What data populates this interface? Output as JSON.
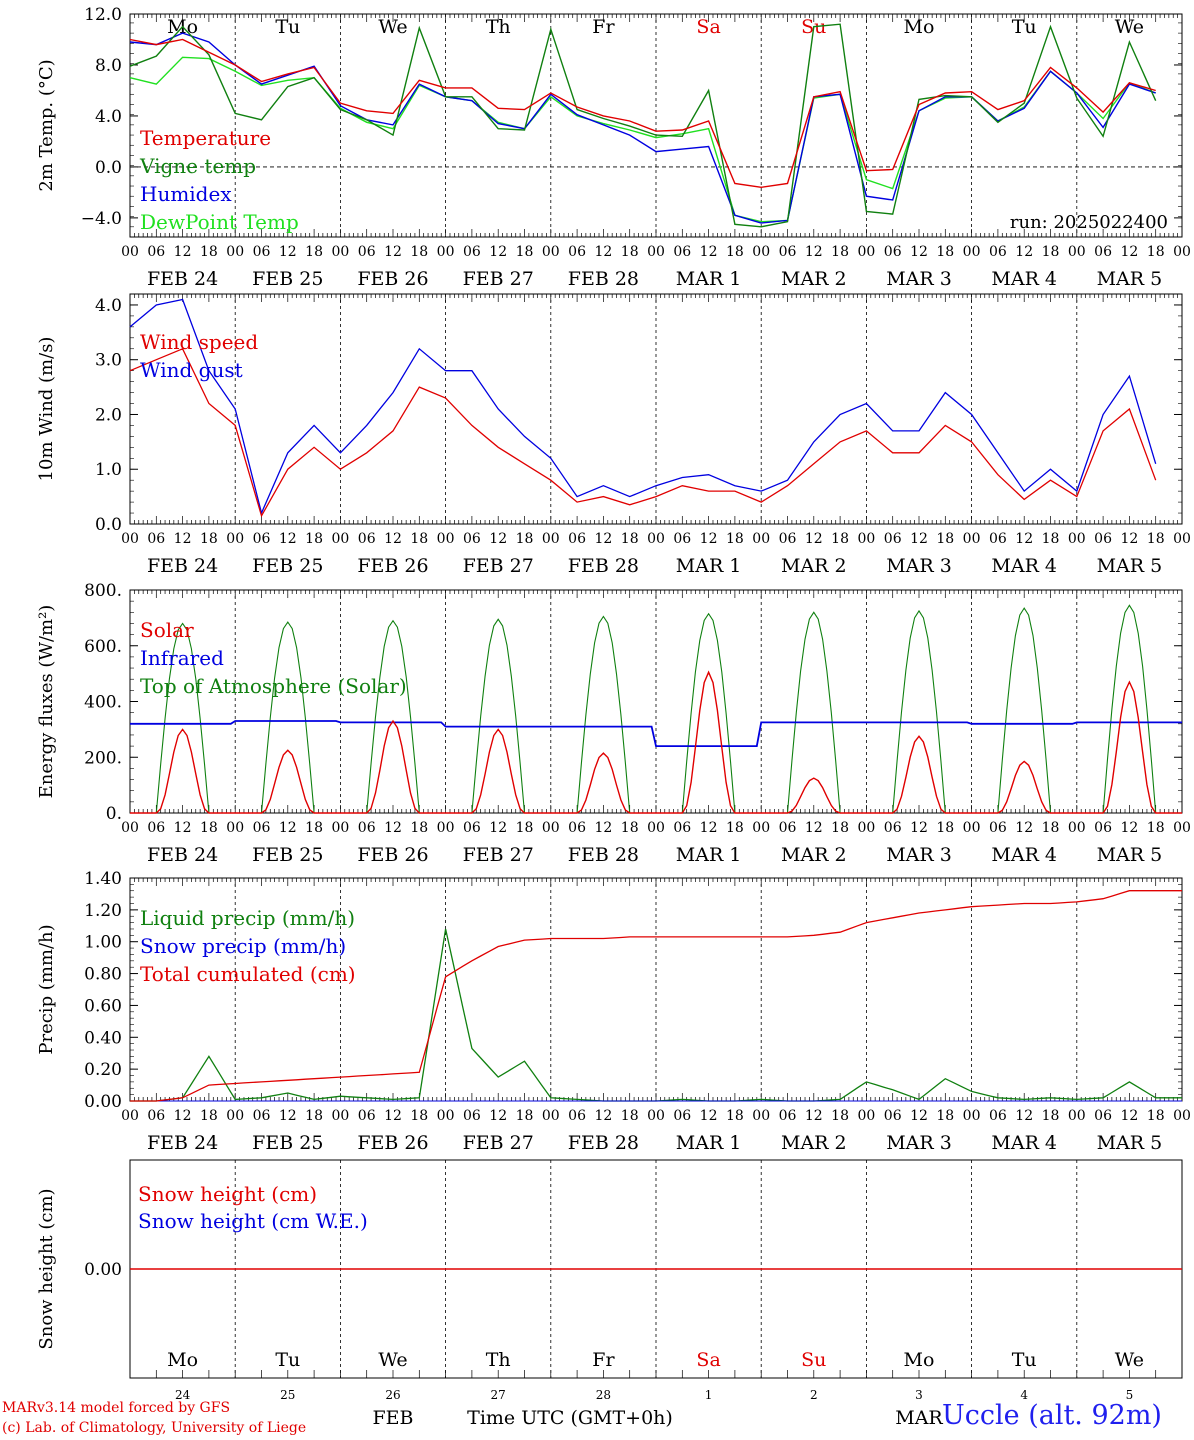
{
  "colors": {
    "red": "#e00000",
    "green": "#108010",
    "blue": "#0000e0",
    "lime": "#20e020",
    "black": "#000000"
  },
  "x_axis": {
    "hour_labels": [
      "00",
      "06",
      "12",
      "18"
    ],
    "date_labels": [
      "FEB 24",
      "FEB 25",
      "FEB 26",
      "FEB 27",
      "FEB 28",
      "MAR  1",
      "MAR  2",
      "MAR  3",
      "MAR  4",
      "MAR  5"
    ],
    "weekday_labels": [
      "Mo",
      "Tu",
      "We",
      "Th",
      "Fr",
      "Sa",
      "Su",
      "Mo",
      "Tu",
      "We"
    ],
    "weekend_days": [
      "Sa",
      "Su"
    ],
    "day_numbers": [
      "24",
      "25",
      "26",
      "27",
      "28",
      "1",
      "2",
      "3",
      "4",
      "5"
    ],
    "month_labels": [
      "FEB",
      "MAR"
    ]
  },
  "footer": {
    "credit_line1": "MARv3.14 model forced by GFS",
    "credit_line2": "(c) Lab. of Climatology, University of Liege",
    "time_label": "Time UTC (GMT+0h)",
    "station": "Uccle (alt. 92m)"
  },
  "chart_data": [
    {
      "type": "line",
      "ylabel": "2m Temp. (°C)",
      "ylim": [
        -5.5,
        12.0
      ],
      "yticks": [
        "12.0",
        "8.0",
        "4.0",
        "0.0",
        "−4.0"
      ],
      "ytick_values": [
        12,
        8,
        4,
        0,
        -4
      ],
      "zero_line": true,
      "run_label": "run: 2025022400",
      "x_hours": [
        0,
        6,
        12,
        18,
        24,
        30,
        36,
        42,
        48,
        54,
        60,
        66,
        72,
        78,
        84,
        90,
        96,
        102,
        108,
        114,
        120,
        126,
        132,
        138,
        144,
        150,
        156,
        162,
        168,
        174,
        180,
        186,
        192,
        198,
        204,
        210,
        216,
        222,
        228,
        234
      ],
      "series": [
        {
          "name": "Temperature",
          "color": "red",
          "values": [
            10.0,
            9.6,
            10.0,
            9.0,
            8.0,
            6.7,
            7.3,
            7.8,
            5.0,
            4.4,
            4.2,
            6.8,
            6.2,
            6.2,
            4.6,
            4.5,
            5.8,
            4.7,
            4.0,
            3.6,
            2.8,
            2.9,
            3.6,
            -1.3,
            -1.6,
            -1.3,
            5.5,
            5.9,
            -0.3,
            -0.2,
            4.9,
            5.8,
            5.9,
            4.5,
            5.2,
            7.8,
            6.2,
            4.3,
            6.6,
            6.0
          ]
        },
        {
          "name": "Vigne temp",
          "color": "green",
          "values": [
            7.9,
            8.7,
            11.0,
            8.8,
            4.2,
            3.7,
            6.3,
            7.0,
            4.5,
            3.7,
            2.5,
            10.9,
            5.5,
            5.5,
            3.0,
            2.9,
            10.8,
            4.5,
            3.8,
            3.2,
            2.5,
            2.4,
            6.0,
            -4.5,
            -4.7,
            -4.3,
            11.0,
            11.2,
            -3.5,
            -3.7,
            5.3,
            5.6,
            5.5,
            3.5,
            5.0,
            11.0,
            5.4,
            2.4,
            9.8,
            5.2
          ]
        },
        {
          "name": "Humidex",
          "color": "blue",
          "values": [
            9.8,
            9.6,
            10.5,
            9.8,
            8.0,
            6.5,
            7.2,
            7.9,
            4.8,
            3.7,
            3.3,
            6.5,
            5.5,
            5.2,
            3.4,
            3.0,
            5.7,
            4.1,
            3.3,
            2.5,
            1.2,
            1.4,
            1.6,
            -3.8,
            -4.4,
            -4.2,
            5.5,
            5.7,
            -2.3,
            -2.6,
            4.4,
            5.5,
            5.5,
            3.6,
            4.6,
            7.5,
            5.8,
            3.1,
            6.5,
            5.8
          ]
        },
        {
          "name": "DewPoint Temp",
          "color": "lime",
          "values": [
            7.0,
            6.5,
            8.6,
            8.5,
            7.5,
            6.4,
            6.8,
            7.0,
            4.6,
            3.5,
            3.0,
            6.4,
            5.5,
            5.2,
            3.5,
            3.0,
            5.5,
            4.0,
            3.4,
            2.9,
            2.3,
            2.6,
            3.0,
            -3.8,
            -4.3,
            -4.2,
            5.4,
            5.7,
            -1.0,
            -1.7,
            4.4,
            5.4,
            5.5,
            3.6,
            4.7,
            7.5,
            5.8,
            3.8,
            6.6,
            5.8
          ]
        }
      ]
    },
    {
      "type": "line",
      "ylabel": "10m Wind (m/s)",
      "ylim": [
        0,
        4.2
      ],
      "yticks": [
        "4.0",
        "3.0",
        "2.0",
        "1.0",
        "0.0"
      ],
      "ytick_values": [
        4,
        3,
        2,
        1,
        0
      ],
      "x_hours": [
        0,
        6,
        12,
        18,
        24,
        30,
        36,
        42,
        48,
        54,
        60,
        66,
        72,
        78,
        84,
        90,
        96,
        102,
        108,
        114,
        120,
        126,
        132,
        138,
        144,
        150,
        156,
        162,
        168,
        174,
        180,
        186,
        192,
        198,
        204,
        210,
        216,
        222,
        228,
        234
      ],
      "series": [
        {
          "name": "Wind speed",
          "color": "red",
          "values": [
            2.8,
            3.0,
            3.2,
            2.2,
            1.8,
            0.15,
            1.0,
            1.4,
            1.0,
            1.3,
            1.7,
            2.5,
            2.3,
            1.8,
            1.4,
            1.1,
            0.8,
            0.4,
            0.5,
            0.35,
            0.5,
            0.7,
            0.6,
            0.6,
            0.4,
            0.7,
            1.1,
            1.5,
            1.7,
            1.3,
            1.3,
            1.8,
            1.5,
            0.9,
            0.45,
            0.8,
            0.5,
            1.7,
            2.1,
            0.8
          ]
        },
        {
          "name": "Wind gust",
          "color": "blue",
          "values": [
            3.6,
            4.0,
            4.1,
            2.8,
            2.1,
            0.2,
            1.3,
            1.8,
            1.3,
            1.8,
            2.4,
            3.2,
            2.8,
            2.8,
            2.1,
            1.6,
            1.2,
            0.5,
            0.7,
            0.5,
            0.7,
            0.85,
            0.9,
            0.7,
            0.6,
            0.8,
            1.5,
            2.0,
            2.2,
            1.7,
            1.7,
            2.4,
            2.0,
            1.3,
            0.6,
            1.0,
            0.6,
            2.0,
            2.7,
            1.1
          ]
        }
      ]
    },
    {
      "type": "line",
      "ylabel": "Energy fluxes (W/m²)",
      "ylim": [
        0,
        800
      ],
      "yticks": [
        "800.",
        "600.",
        "400.",
        "200.",
        "0."
      ],
      "ytick_values": [
        800,
        600,
        400,
        200,
        0
      ],
      "day_peaks": {
        "solar": [
          300,
          225,
          330,
          300,
          215,
          505,
          125,
          275,
          185,
          470
        ],
        "toa_solar": [
          680,
          685,
          690,
          695,
          705,
          715,
          720,
          725,
          735,
          745
        ],
        "infrared": [
          320,
          330,
          325,
          310,
          310,
          240,
          325,
          325,
          320,
          325
        ]
      },
      "series": [
        {
          "name": "Solar",
          "color": "red"
        },
        {
          "name": "Infrared",
          "color": "blue"
        },
        {
          "name": "Top of Atmosphere (Solar)",
          "color": "green"
        }
      ]
    },
    {
      "type": "line",
      "ylabel": "Precip (mm/h)",
      "ylim": [
        0,
        1.4
      ],
      "yticks": [
        "1.40",
        "1.20",
        "1.00",
        "0.80",
        "0.60",
        "0.40",
        "0.20",
        "0.00"
      ],
      "ytick_values": [
        1.4,
        1.2,
        1.0,
        0.8,
        0.6,
        0.4,
        0.2,
        0.0
      ],
      "x_hours": [
        0,
        6,
        12,
        18,
        24,
        30,
        36,
        42,
        48,
        54,
        60,
        66,
        72,
        78,
        84,
        90,
        96,
        102,
        108,
        114,
        120,
        126,
        132,
        138,
        144,
        150,
        156,
        162,
        168,
        174,
        180,
        186,
        192,
        198,
        204,
        210,
        216,
        222,
        228,
        234
      ],
      "series": [
        {
          "name": "Liquid precip (mm/h)",
          "color": "green",
          "values": [
            0,
            0,
            0.02,
            0.28,
            0.01,
            0.02,
            0.05,
            0.01,
            0.03,
            0.02,
            0.01,
            0.02,
            1.08,
            0.33,
            0.15,
            0.25,
            0.02,
            0.01,
            0,
            0,
            0,
            0.01,
            0,
            0,
            0.01,
            0,
            0,
            0.01,
            0.12,
            0.07,
            0.01,
            0.14,
            0.06,
            0.02,
            0.01,
            0.02,
            0.01,
            0.02,
            0.12,
            0.02
          ]
        },
        {
          "name": "Snow precip (mm/h)",
          "color": "blue",
          "values": [
            0,
            0,
            0,
            0,
            0,
            0,
            0,
            0,
            0,
            0,
            0,
            0,
            0,
            0,
            0,
            0,
            0,
            0,
            0,
            0,
            0,
            0,
            0,
            0,
            0,
            0,
            0,
            0,
            0,
            0,
            0,
            0,
            0,
            0,
            0,
            0,
            0,
            0,
            0,
            0
          ]
        },
        {
          "name": "Total cumulated (cm)",
          "color": "red",
          "values": [
            0,
            0,
            0.02,
            0.1,
            0.11,
            0.12,
            0.13,
            0.14,
            0.15,
            0.16,
            0.17,
            0.18,
            0.78,
            0.88,
            0.97,
            1.01,
            1.02,
            1.02,
            1.02,
            1.03,
            1.03,
            1.03,
            1.03,
            1.03,
            1.03,
            1.03,
            1.04,
            1.06,
            1.12,
            1.15,
            1.18,
            1.2,
            1.22,
            1.23,
            1.24,
            1.24,
            1.25,
            1.27,
            1.32,
            1.32
          ]
        }
      ]
    },
    {
      "type": "line",
      "ylabel": "Snow height (cm)",
      "ylim": [
        -1,
        1
      ],
      "yticks": [
        "0.00"
      ],
      "ytick_values": [
        0
      ],
      "series": [
        {
          "name": "Snow height (cm)",
          "color": "red",
          "values": [
            0,
            0
          ]
        },
        {
          "name": "Snow height (cm W.E.)",
          "color": "blue",
          "values": [
            0,
            0
          ]
        }
      ]
    }
  ]
}
